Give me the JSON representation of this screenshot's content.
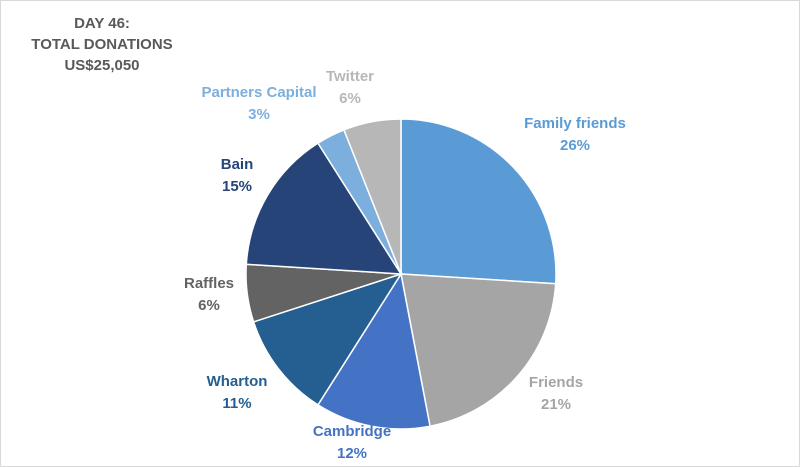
{
  "title_lines": [
    "DAY 46:",
    "TOTAL DONATIONS",
    "US$25,050"
  ],
  "chart_data": {
    "type": "pie",
    "slices": [
      {
        "label": "Family friends",
        "value": 26,
        "value_label": "26%",
        "color": "#5b9bd5",
        "label_color": "#5b9bd5"
      },
      {
        "label": "Friends",
        "value": 21,
        "value_label": "21%",
        "color": "#a5a5a5",
        "label_color": "#a5a5a5"
      },
      {
        "label": "Cambridge",
        "value": 12,
        "value_label": "12%",
        "color": "#4472c4",
        "label_color": "#4472c4"
      },
      {
        "label": "Wharton",
        "value": 11,
        "value_label": "11%",
        "color": "#255e91",
        "label_color": "#255e91"
      },
      {
        "label": "Raffles",
        "value": 6,
        "value_label": "6%",
        "color": "#636363",
        "label_color": "#636363"
      },
      {
        "label": "Bain",
        "value": 15,
        "value_label": "15%",
        "color": "#264478",
        "label_color": "#264478"
      },
      {
        "label": "Partners Capital",
        "value": 3,
        "value_label": "3%",
        "color": "#7cafdd",
        "label_color": "#7cafdd"
      },
      {
        "label": "Twitter",
        "value": 6,
        "value_label": "6%",
        "color": "#b7b7b7",
        "label_color": "#b7b7b7"
      }
    ],
    "start_angle": "12 o'clock",
    "direction": "clockwise",
    "legend": "none"
  }
}
